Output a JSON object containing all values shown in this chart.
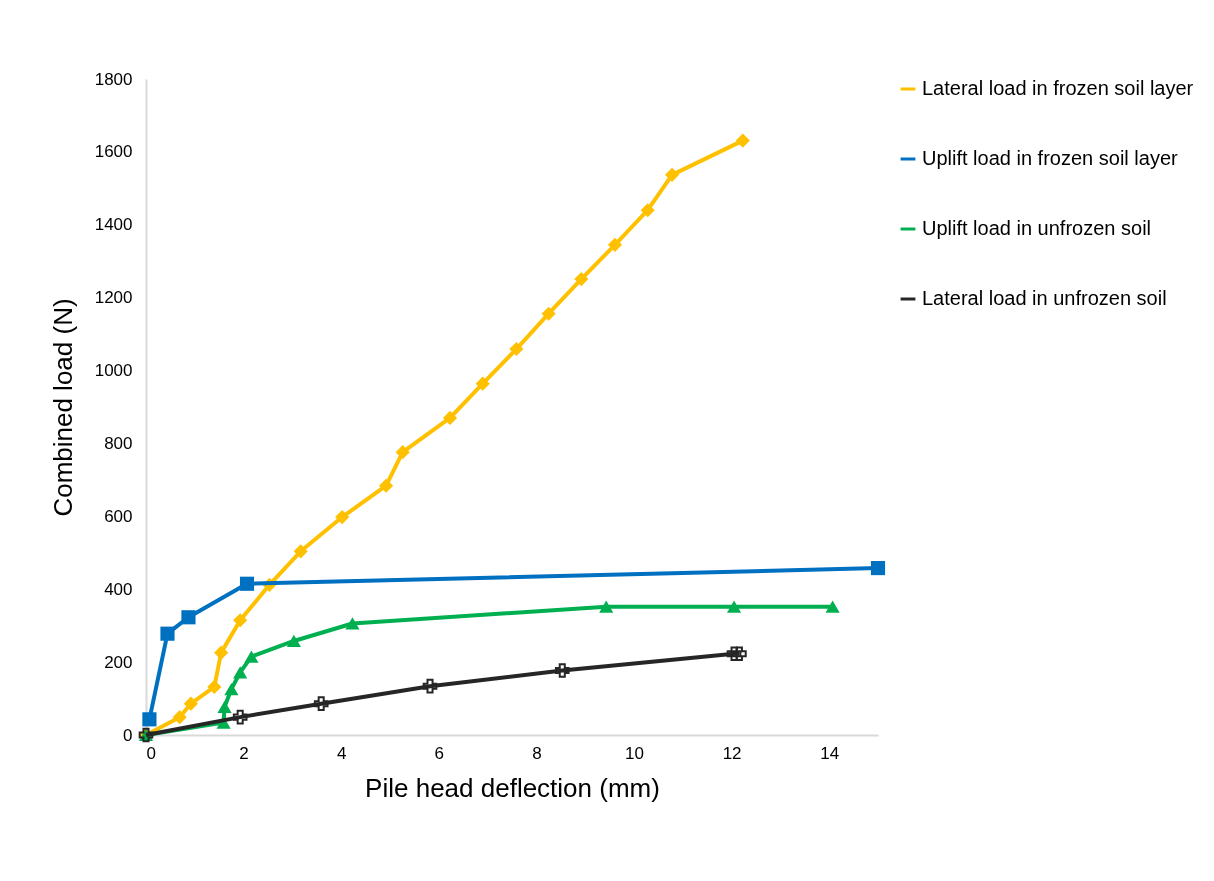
{
  "chart_data": {
    "type": "line",
    "xlabel": "Pile head deflection (mm)",
    "ylabel": "Combined  load (N)",
    "xlim": [
      0,
      15
    ],
    "xticks": [
      0,
      2,
      4,
      6,
      8,
      10,
      12,
      14
    ],
    "ylim": [
      0,
      1800
    ],
    "yticks": [
      0,
      200,
      400,
      600,
      800,
      1000,
      1200,
      1400,
      1600,
      1800
    ],
    "grid": false,
    "legend": "right",
    "line_style": "solid",
    "series": [
      {
        "name": "Lateral load in frozen soil layer",
        "color": "#ffc000",
        "marker": "diamond",
        "x": [
          0,
          0.69,
          0.92,
          1.4,
          1.54,
          1.93,
          2.53,
          3.17,
          4.02,
          4.92,
          5.26,
          6.23,
          6.9,
          7.59,
          8.25,
          8.92,
          9.61,
          10.28,
          10.78,
          12.23
        ],
        "values": [
          0,
          49,
          86,
          132,
          226,
          315,
          412,
          504,
          598,
          684,
          776,
          870,
          964,
          1059,
          1156,
          1251,
          1345,
          1440,
          1537,
          1631
        ]
      },
      {
        "name": "Uplift load in frozen soil layer",
        "color": "#0070c0",
        "marker": "square",
        "x": [
          0.07,
          0.44,
          0.87,
          2.07,
          15
        ],
        "values": [
          43,
          278,
          323,
          415,
          458
        ]
      },
      {
        "name": "Uplift load in unfrozen soil",
        "color": "#00b050",
        "marker": "triangle",
        "x": [
          0,
          1.59,
          1.61,
          1.75,
          1.93,
          2.16,
          3.03,
          4.23,
          9.43,
          12.05,
          14.07
        ],
        "values": [
          0,
          34,
          77,
          126,
          172,
          215,
          258,
          306,
          352,
          352,
          352
        ]
      },
      {
        "name": "Lateral load in unfrozen soil",
        "color": "#262626",
        "marker": "cross",
        "x": [
          0,
          1.93,
          3.59,
          5.82,
          8.53,
          12.05,
          12.16
        ],
        "values": [
          0,
          49,
          86,
          134,
          177,
          223,
          223
        ]
      }
    ]
  }
}
